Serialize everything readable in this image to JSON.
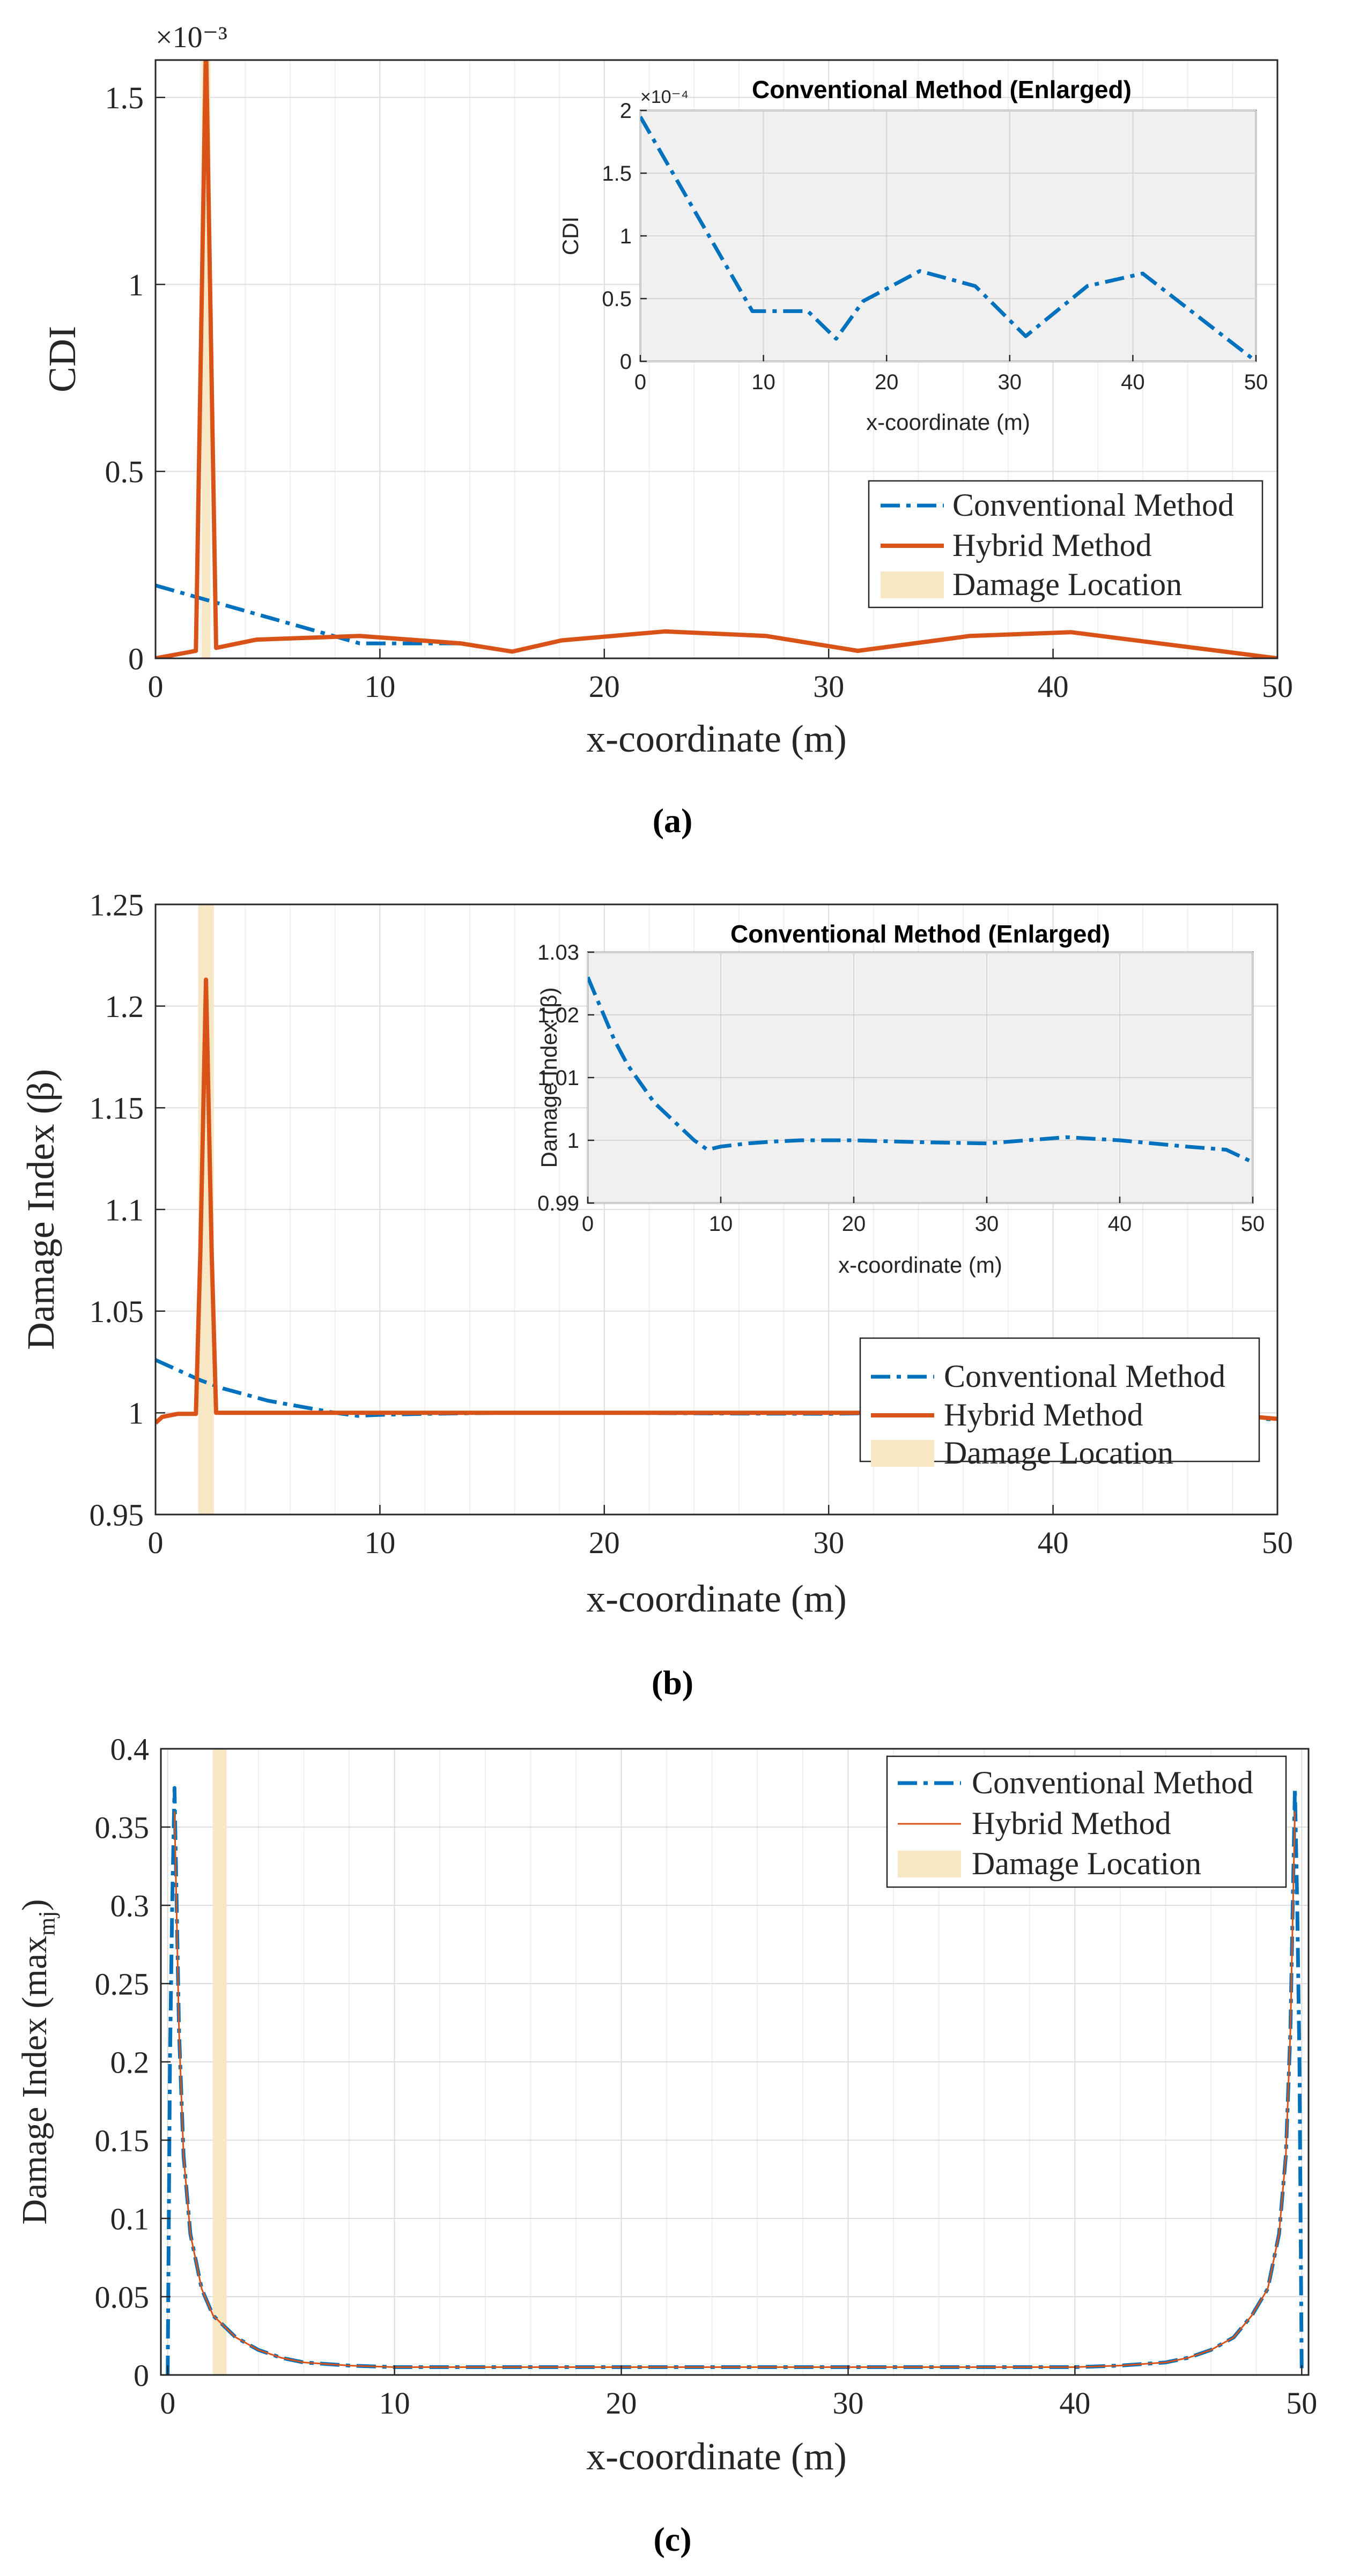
{
  "colors": {
    "conventional": "#0072BD",
    "hybrid": "#D95319",
    "damage": "#F8E7C4",
    "grid": "#DDDDDD",
    "inset_bg": "#F0F0F0"
  },
  "panels": {
    "a": {
      "caption": "(a)"
    },
    "b": {
      "caption": "(b)"
    },
    "c": {
      "caption": "(c)"
    }
  },
  "chart_data": [
    {
      "id": "a",
      "type": "line",
      "title": "",
      "xlabel": "x-coordinate (m)",
      "ylabel": "CDI",
      "exponent": "×10⁻³",
      "xlim": [
        0,
        50
      ],
      "ylim": [
        0,
        1.6
      ],
      "xticks": [
        0,
        10,
        20,
        30,
        40,
        50
      ],
      "xtick_labels": [
        "0",
        "10",
        "20",
        "30",
        "40",
        "50"
      ],
      "yticks": [
        0,
        0.5,
        1,
        1.5
      ],
      "ytick_labels": [
        "0",
        "0.5",
        "1",
        "1.5"
      ],
      "grid": true,
      "legend_position": "bottom-right",
      "damage_band": [
        2.05,
        2.45
      ],
      "series": [
        {
          "name": "Conventional Method",
          "style": "dashdot",
          "x": [
            0,
            9.1,
            13.6,
            15.9,
            18.1,
            22.7,
            27.2,
            31.3,
            36.3,
            40.8,
            50
          ],
          "y": [
            0.195,
            0.04,
            0.04,
            0.018,
            0.048,
            0.072,
            0.06,
            0.02,
            0.06,
            0.07,
            0
          ]
        },
        {
          "name": "Hybrid Method",
          "style": "solid",
          "x": [
            0,
            1.8,
            2.25,
            2.7,
            4.5,
            9.1,
            13.6,
            15.9,
            18.1,
            22.7,
            27.2,
            31.3,
            36.3,
            40.8,
            50
          ],
          "y": [
            0,
            0.02,
            1.65,
            0.028,
            0.05,
            0.06,
            0.04,
            0.018,
            0.048,
            0.072,
            0.06,
            0.02,
            0.06,
            0.07,
            0
          ]
        }
      ],
      "legend_entries": [
        "Conventional Method",
        "Hybrid Method",
        "Damage Location"
      ],
      "inset": {
        "title": "Conventional Method (Enlarged)",
        "xlabel": "x-coordinate (m)",
        "ylabel": "CDI",
        "exponent": "×10⁻⁴",
        "xlim": [
          0,
          50
        ],
        "ylim": [
          0,
          2
        ],
        "xticks": [
          0,
          10,
          20,
          30,
          40,
          50
        ],
        "xtick_labels": [
          "0",
          "10",
          "20",
          "30",
          "40",
          "50"
        ],
        "yticks": [
          0,
          0.5,
          1,
          1.5,
          2
        ],
        "ytick_labels": [
          "0",
          "0.5",
          "1",
          "1.5",
          "2"
        ],
        "series": [
          {
            "name": "Conventional Method",
            "style": "dashdot",
            "x": [
              0,
              9.1,
              13.6,
              15.9,
              18.1,
              22.7,
              27.2,
              31.3,
              36.3,
              40.8,
              50
            ],
            "y": [
              1.95,
              0.4,
              0.4,
              0.18,
              0.48,
              0.72,
              0.6,
              0.2,
              0.6,
              0.7,
              0
            ]
          }
        ]
      }
    },
    {
      "id": "b",
      "type": "line",
      "title": "",
      "xlabel": "x-coordinate (m)",
      "ylabel": "Damage Index (β)",
      "xlim": [
        0,
        50
      ],
      "ylim": [
        0.95,
        1.25
      ],
      "xticks": [
        0,
        10,
        20,
        30,
        40,
        50
      ],
      "xtick_labels": [
        "0",
        "10",
        "20",
        "30",
        "40",
        "50"
      ],
      "yticks": [
        0.95,
        1,
        1.05,
        1.1,
        1.15,
        1.2,
        1.25
      ],
      "ytick_labels": [
        "0.95",
        "1",
        "1.05",
        "1.1",
        "1.15",
        "1.2",
        "1.25"
      ],
      "grid": true,
      "legend_position": "bottom-right",
      "damage_band": [
        1.9,
        2.6
      ],
      "series": [
        {
          "name": "Conventional Method",
          "style": "dashdot",
          "x": [
            0,
            1,
            2,
            3,
            4,
            5,
            6,
            7,
            8,
            9,
            10,
            12,
            14,
            16,
            18,
            20,
            25,
            30,
            33,
            36,
            40,
            45,
            48,
            50
          ],
          "y": [
            1.026,
            1.021,
            1.016,
            1.012,
            1.009,
            1.006,
            1.004,
            1.002,
            1.0,
            0.9985,
            0.999,
            0.9995,
            0.9998,
            1.0,
            1.0,
            1.0,
            0.9997,
            0.9995,
            1.0,
            1.0005,
            1.0,
            0.999,
            0.9985,
            0.9965
          ]
        },
        {
          "name": "Hybrid Method",
          "style": "solid",
          "x": [
            0,
            0.3,
            1,
            1.8,
            2.0,
            2.25,
            2.5,
            2.7,
            5,
            10,
            15,
            20,
            25,
            30,
            35,
            40,
            45,
            48,
            50
          ],
          "y": [
            0.995,
            0.998,
            0.9995,
            0.9995,
            1.08,
            1.213,
            1.08,
            1.0,
            1.0,
            1.0,
            1.0,
            1.0,
            1.0,
            1.0,
            1.0,
            1.0,
            0.9995,
            0.999,
            0.997
          ]
        }
      ],
      "legend_entries": [
        "Conventional Method",
        "Hybrid Method",
        "Damage Location"
      ],
      "inset": {
        "title": "Conventional Method (Enlarged)",
        "xlabel": "x-coordinate (m)",
        "ylabel": "Damage Index (β)",
        "xlim": [
          0,
          50
        ],
        "ylim": [
          0.99,
          1.03
        ],
        "xticks": [
          0,
          10,
          20,
          30,
          40,
          50
        ],
        "xtick_labels": [
          "0",
          "10",
          "20",
          "30",
          "40",
          "50"
        ],
        "yticks": [
          0.99,
          1,
          1.01,
          1.02,
          1.03
        ],
        "ytick_labels": [
          "0.99",
          "1",
          "1.01",
          "1.02",
          "1.03"
        ],
        "series": [
          {
            "name": "Conventional Method",
            "style": "dashdot",
            "x": [
              0,
              1,
              2,
              3,
              4,
              5,
              6,
              7,
              8,
              9,
              10,
              12,
              14,
              16,
              18,
              20,
              25,
              30,
              33,
              36,
              40,
              45,
              48,
              50
            ],
            "y": [
              1.026,
              1.021,
              1.016,
              1.012,
              1.009,
              1.006,
              1.004,
              1.002,
              1.0,
              0.9985,
              0.999,
              0.9995,
              0.9998,
              1.0,
              1.0,
              1.0,
              0.9997,
              0.9995,
              1.0,
              1.0005,
              1.0,
              0.999,
              0.9985,
              0.9965
            ]
          }
        ]
      }
    },
    {
      "id": "c",
      "type": "line",
      "title": "",
      "xlabel": "x-coordinate (m)",
      "ylabel": "Damage Index (max",
      "ylabel_sub": "mj",
      "ylabel_end": ")",
      "xlim": [
        -0.3,
        50.3
      ],
      "ylim": [
        0,
        0.4
      ],
      "xticks": [
        0,
        10,
        20,
        30,
        40,
        50
      ],
      "xtick_labels": [
        "0",
        "10",
        "20",
        "30",
        "40",
        "50"
      ],
      "yticks": [
        0,
        0.05,
        0.1,
        0.15,
        0.2,
        0.25,
        0.3,
        0.35,
        0.4
      ],
      "ytick_labels": [
        "0",
        "0.05",
        "0.1",
        "0.15",
        "0.2",
        "0.25",
        "0.3",
        "0.35",
        "0.4"
      ],
      "grid": true,
      "legend_position": "top-right",
      "damage_band": [
        2.0,
        2.6
      ],
      "series": [
        {
          "name": "Conventional Method",
          "style": "dashdot",
          "x": [
            0,
            0.1,
            0.2,
            0.3,
            0.5,
            0.7,
            1,
            1.5,
            2,
            3,
            4,
            5,
            6,
            8,
            10,
            20,
            30,
            40,
            42,
            44,
            45,
            46,
            47,
            47.8,
            48.5,
            49,
            49.3,
            49.5,
            49.7,
            49.8,
            49.9,
            50
          ],
          "y": [
            0,
            0.2,
            0.3,
            0.375,
            0.22,
            0.14,
            0.09,
            0.055,
            0.038,
            0.024,
            0.016,
            0.011,
            0.008,
            0.006,
            0.005,
            0.005,
            0.005,
            0.005,
            0.006,
            0.008,
            0.011,
            0.016,
            0.024,
            0.038,
            0.055,
            0.09,
            0.14,
            0.22,
            0.375,
            0.3,
            0.2,
            0
          ]
        },
        {
          "name": "Hybrid Method",
          "style": "solid-thin",
          "x": [
            0.3,
            0.5,
            0.7,
            1,
            1.5,
            2,
            3,
            4,
            5,
            6,
            8,
            10,
            20,
            30,
            40,
            42,
            44,
            45,
            46,
            47,
            47.8,
            48.5,
            49,
            49.3,
            49.5,
            49.7
          ],
          "y": [
            0.36,
            0.22,
            0.14,
            0.09,
            0.055,
            0.038,
            0.024,
            0.016,
            0.011,
            0.008,
            0.006,
            0.005,
            0.005,
            0.005,
            0.005,
            0.006,
            0.008,
            0.011,
            0.016,
            0.024,
            0.038,
            0.055,
            0.09,
            0.14,
            0.22,
            0.36
          ]
        }
      ],
      "legend_entries": [
        "Conventional Method",
        "Hybrid Method",
        "Damage Location"
      ]
    }
  ]
}
